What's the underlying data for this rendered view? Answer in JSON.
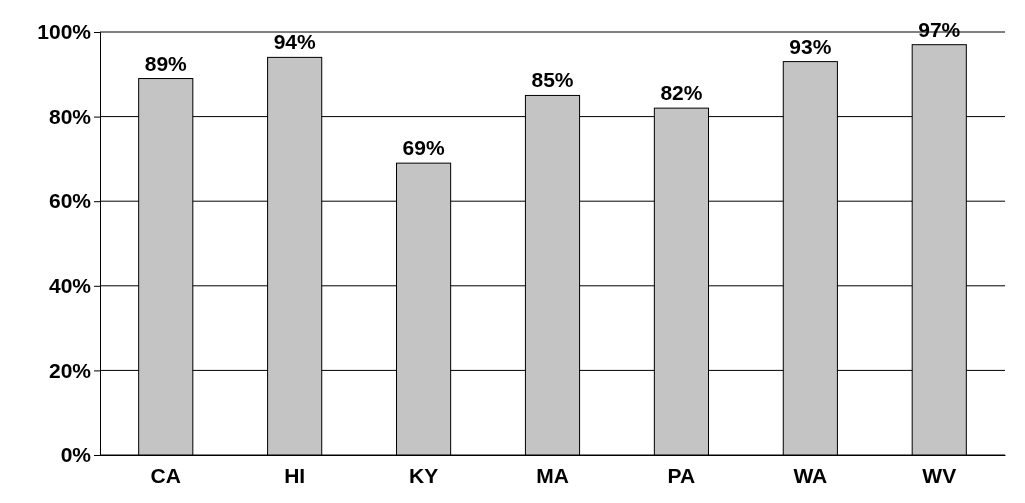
{
  "chart_data": {
    "type": "bar",
    "categories": [
      "CA",
      "HI",
      "KY",
      "MA",
      "PA",
      "WA",
      "WV"
    ],
    "values": [
      89,
      94,
      69,
      85,
      82,
      93,
      97
    ],
    "value_labels": [
      "89%",
      "94%",
      "69%",
      "85%",
      "82%",
      "93%",
      "97%"
    ],
    "color": "#c4c4c4",
    "ylim": [
      0,
      100
    ],
    "yticks": [
      {
        "value": 0,
        "label": "0%"
      },
      {
        "value": 20,
        "label": "20%"
      },
      {
        "value": 40,
        "label": "40%"
      },
      {
        "value": 60,
        "label": "60%"
      },
      {
        "value": 80,
        "label": "80%"
      },
      {
        "value": 100,
        "label": "100%"
      }
    ],
    "grid": "y"
  }
}
